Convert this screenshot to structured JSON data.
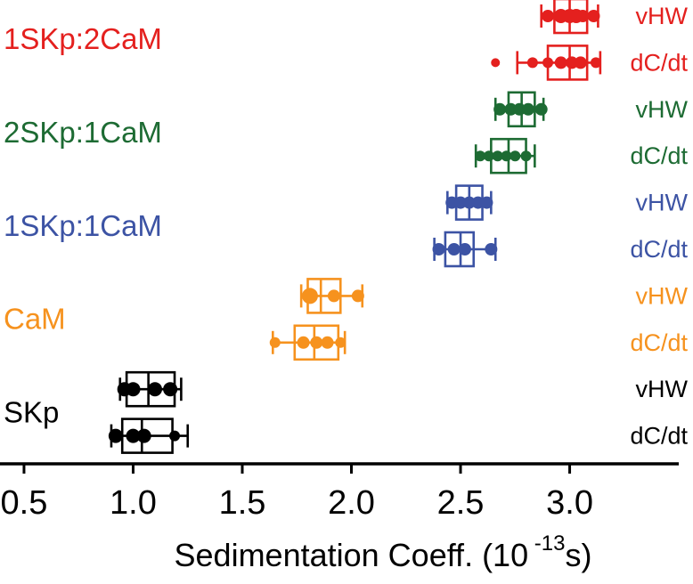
{
  "figure": {
    "xlabel_prefix": "Sedimentation Coeff. (10",
    "xlabel_superscript": "-13",
    "xlabel_suffix": "s)"
  },
  "chart_data": {
    "type": "box",
    "orientation": "horizontal",
    "title": "",
    "xlabel": "Sedimentation Coeff. (10^-13 s)",
    "xlim": [
      0.39,
      3.565
    ],
    "xticks": [
      "0.5",
      "1.0",
      "1.5",
      "2.0",
      "2.5",
      "3.0"
    ],
    "xtick_values": [
      0.5,
      1.0,
      1.5,
      2.0,
      2.5,
      3.0
    ],
    "axis_color": "#000000",
    "groups": [
      {
        "label": "1SKp:2CaM",
        "color": "#e4201e",
        "rows": [
          {
            "method": "vHW",
            "whisker_low": 2.87,
            "q1": 2.93,
            "median": 3.0,
            "q3": 3.08,
            "whisker_high": 3.13,
            "points": [
              2.9,
              2.96,
              3.0,
              3.03,
              3.06,
              3.11
            ],
            "point_sizes": [
              7,
              8,
              8,
              8,
              7,
              7
            ]
          },
          {
            "method": "dC/dt",
            "whisker_low": 2.76,
            "q1": 2.9,
            "median": 3.0,
            "q3": 3.08,
            "whisker_high": 3.14,
            "points": [
              2.66,
              2.83,
              2.9,
              2.96,
              3.01,
              3.05,
              3.12
            ],
            "point_sizes": [
              5,
              6,
              6,
              7,
              7,
              7,
              6
            ]
          }
        ]
      },
      {
        "label": "2SKp:1CaM",
        "color": "#1d6b33",
        "rows": [
          {
            "method": "vHW",
            "whisker_low": 2.66,
            "q1": 2.72,
            "median": 2.78,
            "q3": 2.84,
            "whisker_high": 2.88,
            "points": [
              2.68,
              2.73,
              2.77,
              2.81,
              2.87
            ],
            "point_sizes": [
              7,
              7,
              7,
              7,
              7
            ]
          },
          {
            "method": "dC/dt",
            "whisker_low": 2.57,
            "q1": 2.64,
            "median": 2.72,
            "q3": 2.8,
            "whisker_high": 2.84,
            "points": [
              2.59,
              2.63,
              2.67,
              2.71,
              2.75,
              2.8
            ],
            "point_sizes": [
              6,
              6,
              6,
              6,
              6,
              6
            ]
          }
        ]
      },
      {
        "label": "1SKp:1CaM",
        "color": "#3c53a4",
        "rows": [
          {
            "method": "vHW",
            "whisker_low": 2.44,
            "q1": 2.48,
            "median": 2.54,
            "q3": 2.6,
            "whisker_high": 2.64,
            "points": [
              2.46,
              2.5,
              2.54,
              2.58,
              2.62
            ],
            "point_sizes": [
              7,
              7,
              7,
              7,
              7
            ]
          },
          {
            "method": "dC/dt",
            "whisker_low": 2.38,
            "q1": 2.43,
            "median": 2.5,
            "q3": 2.56,
            "whisker_high": 2.66,
            "points": [
              2.4,
              2.47,
              2.52,
              2.64
            ],
            "point_sizes": [
              7,
              7,
              7,
              7
            ]
          }
        ]
      },
      {
        "label": "CaM",
        "color": "#f6921e",
        "rows": [
          {
            "method": "vHW",
            "whisker_low": 1.77,
            "q1": 1.8,
            "median": 1.86,
            "q3": 1.95,
            "whisker_high": 2.05,
            "points": [
              1.81,
              1.92,
              2.03
            ],
            "point_sizes": [
              9,
              7,
              7
            ]
          },
          {
            "method": "dC/dt",
            "whisker_low": 1.64,
            "q1": 1.74,
            "median": 1.83,
            "q3": 1.94,
            "whisker_high": 1.97,
            "points": [
              1.65,
              1.78,
              1.84,
              1.89,
              1.95
            ],
            "point_sizes": [
              6,
              7,
              7,
              7,
              6
            ]
          }
        ]
      },
      {
        "label": "SKp",
        "color": "#000000",
        "rows": [
          {
            "method": "vHW",
            "whisker_low": 0.94,
            "q1": 0.97,
            "median": 1.07,
            "q3": 1.19,
            "whisker_high": 1.22,
            "points": [
              0.96,
              1.0,
              1.1,
              1.17
            ],
            "point_sizes": [
              8,
              8,
              8,
              8
            ]
          },
          {
            "method": "dC/dt",
            "whisker_low": 0.9,
            "q1": 0.95,
            "median": 1.04,
            "q3": 1.18,
            "whisker_high": 1.25,
            "points": [
              0.92,
              1.0,
              1.05,
              1.19
            ],
            "point_sizes": [
              8,
              8,
              8,
              6
            ]
          }
        ]
      }
    ]
  }
}
